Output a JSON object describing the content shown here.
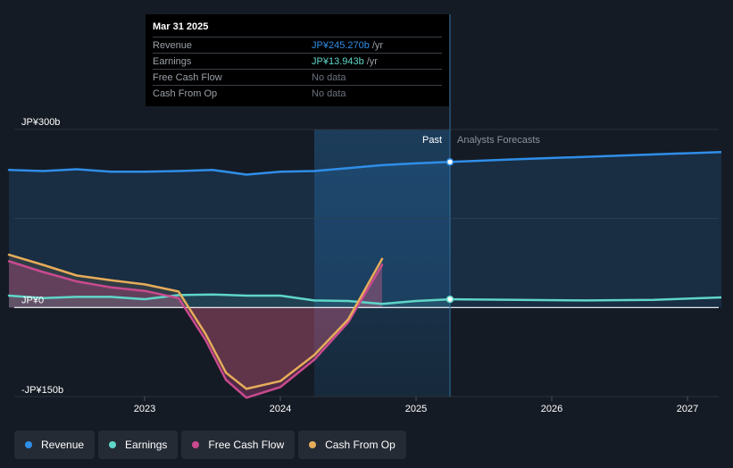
{
  "chart_data": {
    "type": "line",
    "x_tick_labels": [
      "2023",
      "2024",
      "2025",
      "2026",
      "2027"
    ],
    "y_tick_labels": [
      "JP¥300b",
      "JP¥0",
      "-JP¥150b"
    ],
    "ylim": [
      -150,
      300
    ],
    "divider_labels": {
      "past": "Past",
      "forecast": "Analysts Forecasts"
    },
    "series": [
      {
        "name": "Revenue",
        "color": "#2f8ee8",
        "points": [
          [
            2022.0,
            232
          ],
          [
            2022.25,
            230
          ],
          [
            2022.5,
            233
          ],
          [
            2022.75,
            229
          ],
          [
            2023.0,
            229
          ],
          [
            2023.25,
            230
          ],
          [
            2023.5,
            232
          ],
          [
            2023.75,
            224
          ],
          [
            2024.0,
            229
          ],
          [
            2024.25,
            230
          ],
          [
            2024.5,
            235
          ],
          [
            2024.75,
            240
          ],
          [
            2025.0,
            243
          ],
          [
            2025.25,
            245.3
          ]
        ],
        "forecast": [
          [
            2025.25,
            245.3
          ],
          [
            2025.75,
            250
          ],
          [
            2026.25,
            254
          ],
          [
            2026.75,
            258
          ],
          [
            2027.25,
            262
          ]
        ]
      },
      {
        "name": "Earnings",
        "color": "#5fd6c8",
        "points": [
          [
            2022.0,
            20
          ],
          [
            2022.25,
            16
          ],
          [
            2022.5,
            18
          ],
          [
            2022.75,
            18
          ],
          [
            2023.0,
            14
          ],
          [
            2023.25,
            21
          ],
          [
            2023.5,
            22
          ],
          [
            2023.75,
            20
          ],
          [
            2024.0,
            20
          ],
          [
            2024.25,
            12
          ],
          [
            2024.5,
            11
          ],
          [
            2024.75,
            6
          ],
          [
            2025.0,
            11
          ],
          [
            2025.25,
            13.9
          ]
        ],
        "forecast": [
          [
            2025.25,
            13.9
          ],
          [
            2025.75,
            13
          ],
          [
            2026.25,
            12
          ],
          [
            2026.75,
            13
          ],
          [
            2027.25,
            17
          ]
        ]
      },
      {
        "name": "Free Cash Flow",
        "color": "#c94a8f",
        "points": [
          [
            2022.0,
            78
          ],
          [
            2022.25,
            60
          ],
          [
            2022.5,
            44
          ],
          [
            2022.75,
            34
          ],
          [
            2023.0,
            28
          ],
          [
            2023.25,
            16
          ],
          [
            2023.45,
            -55
          ],
          [
            2023.6,
            -122
          ],
          [
            2023.75,
            -152
          ],
          [
            2024.0,
            -134
          ],
          [
            2024.25,
            -88
          ],
          [
            2024.5,
            -25
          ],
          [
            2024.75,
            72
          ]
        ]
      },
      {
        "name": "Cash From Op",
        "color": "#e6ad5a",
        "points": [
          [
            2022.0,
            89
          ],
          [
            2022.25,
            72
          ],
          [
            2022.5,
            54
          ],
          [
            2022.75,
            46
          ],
          [
            2023.0,
            39
          ],
          [
            2023.25,
            27
          ],
          [
            2023.45,
            -45
          ],
          [
            2023.6,
            -110
          ],
          [
            2023.75,
            -137
          ],
          [
            2024.0,
            -124
          ],
          [
            2024.25,
            -80
          ],
          [
            2024.5,
            -20
          ],
          [
            2024.75,
            82
          ]
        ]
      }
    ],
    "highlight": {
      "x": 2025.25,
      "date": "Mar 31 2025",
      "rows": [
        {
          "label": "Revenue",
          "value": "JP¥245.270b",
          "unit": "/yr",
          "color": "#2f8ee8"
        },
        {
          "label": "Earnings",
          "value": "JP¥13.943b",
          "unit": "/yr",
          "color": "#5fd6c8"
        },
        {
          "label": "Free Cash Flow",
          "value": "No data",
          "unit": "",
          "color": "#6b7280"
        },
        {
          "label": "Cash From Op",
          "value": "No data",
          "unit": "",
          "color": "#6b7280"
        }
      ]
    },
    "past_shade_start": 2024.25,
    "legend": [
      {
        "name": "Revenue",
        "color": "#2f8ee8"
      },
      {
        "name": "Earnings",
        "color": "#5fd6c8"
      },
      {
        "name": "Free Cash Flow",
        "color": "#c94a8f"
      },
      {
        "name": "Cash From Op",
        "color": "#e6ad5a"
      }
    ]
  }
}
